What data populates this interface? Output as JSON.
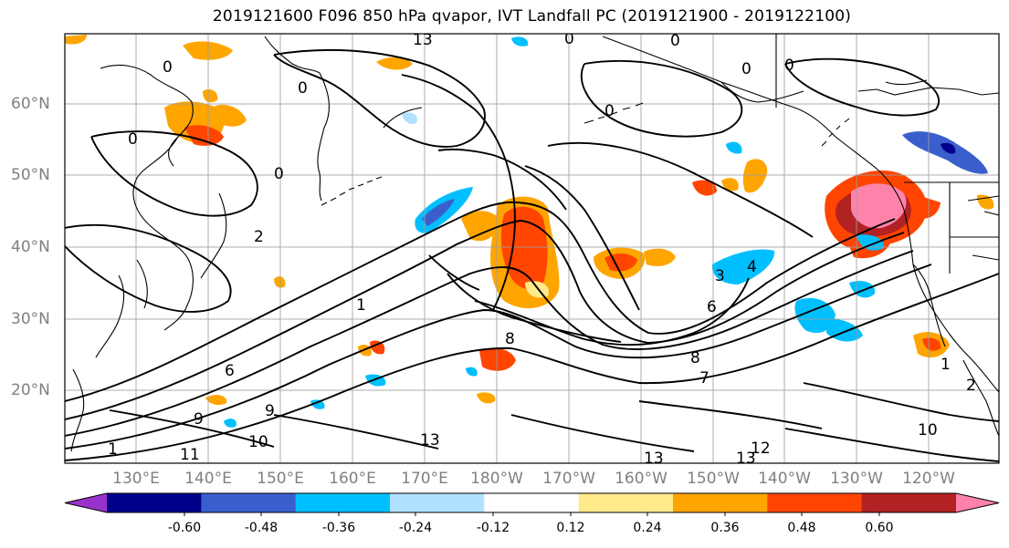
{
  "title": "2019121600 F096 850 hPa qvapor, IVT Landfall PC (2019121900 - 2019122100)",
  "latitude_labels": [
    "60°N",
    "50°N",
    "40°N",
    "30°N",
    "20°N"
  ],
  "longitude_labels": [
    "130°E",
    "140°E",
    "150°E",
    "160°E",
    "170°E",
    "180°W",
    "170°W",
    "160°W",
    "150°W",
    "140°W",
    "130°W",
    "120°W"
  ],
  "contour_labels": [
    "13",
    "0",
    "0",
    "0",
    "0",
    "0",
    "0",
    "0",
    "0",
    "0",
    "2",
    "1",
    "6",
    "8",
    "8",
    "7",
    "9",
    "9",
    "10",
    "11",
    "1",
    "13",
    "13",
    "12",
    "13",
    "10",
    "2",
    "1",
    "3",
    "4",
    "6"
  ],
  "colorbar": {
    "tick_labels": [
      "-0.60",
      "-0.48",
      "-0.36",
      "-0.24",
      "-0.12",
      "0.12",
      "0.24",
      "0.36",
      "0.48",
      "0.60"
    ],
    "colors": [
      "#9932cc",
      "#00008b",
      "#3a5fcd",
      "#00bfff",
      "#b0e2ff",
      "#ffffff",
      "#ffe98a",
      "#ffa500",
      "#ff4500",
      "#b22222",
      "#ff82ab"
    ]
  },
  "colors": {
    "coast": "#000000",
    "contour": "#000000",
    "grid": "#9e9e9e",
    "tick_label": "#808080"
  }
}
